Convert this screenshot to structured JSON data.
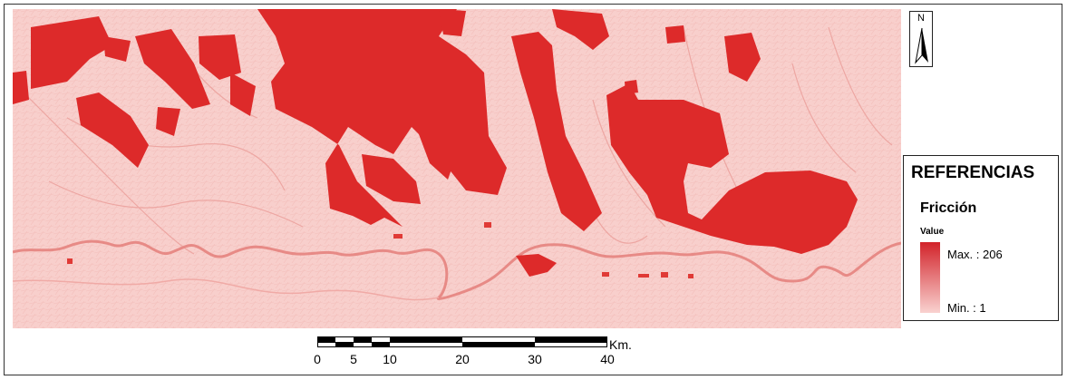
{
  "map": {
    "base_color": "#f8cfcc",
    "high_color": "#dd2a2a",
    "river_color": "#e78a86"
  },
  "north_arrow": {
    "label": "N",
    "icon": "north-arrow-icon"
  },
  "legend": {
    "title": "REFERENCIAS",
    "layer_name": "Fricción",
    "value_label": "Value",
    "max_label": "Max. : 206",
    "min_label": "Min. : 1",
    "max_value": 206,
    "min_value": 1,
    "max_color": "#d2232a",
    "min_color": "#f9d2d0"
  },
  "scale_bar": {
    "unit": "Km.",
    "ticks": [
      "0",
      "5",
      "10",
      "20",
      "30",
      "40"
    ]
  }
}
